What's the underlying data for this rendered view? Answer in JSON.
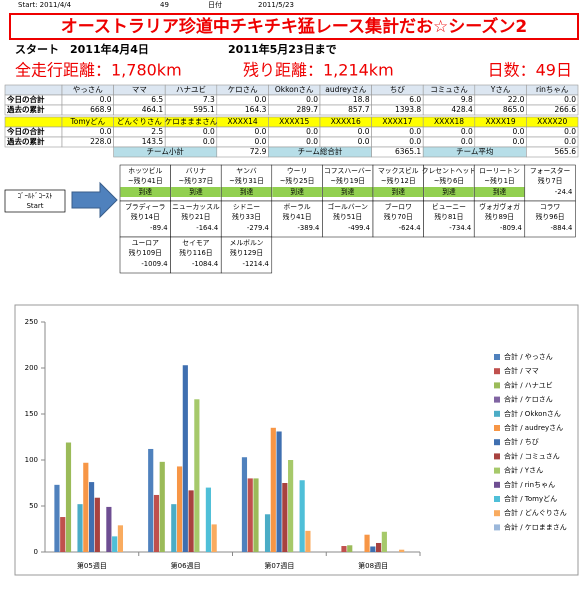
{
  "header": {
    "start_label": "Start: 2011/4/4",
    "days": "49",
    "date_label": "日付",
    "date": "2011/5/23"
  },
  "title": "オーストラリア珍道中チキチキ猛レース集計だお☆シーズン2",
  "summary": {
    "start": "スタート　2011年4月4日",
    "until": "2011年5月23日まで",
    "total": "全走行距離：1,780km",
    "remaining": "残り距離：1,214km",
    "days": "日数：49日"
  },
  "table": {
    "blocks": [
      {
        "header": [
          "やっさん",
          "ママ",
          "ハナユビ",
          "ケロさん",
          "Okkonさん",
          "audreyさん",
          "ちび",
          "コミュさん",
          "Yさん",
          "rinちゃん"
        ],
        "rows": [
          {
            "label": "今日の合計",
            "values": [
              "0.0",
              "6.5",
              "7.3",
              "0.0",
              "0.0",
              "18.8",
              "6.0",
              "9.8",
              "22.0",
              "0.0"
            ]
          },
          {
            "label": "過去の累計",
            "values": [
              "668.9",
              "464.1",
              "595.1",
              "164.3",
              "289.7",
              "857.7",
              "1393.8",
              "428.4",
              "865.0",
              "266.6"
            ]
          }
        ]
      },
      {
        "header": [
          "Tomyどん",
          "どんぐりさん",
          "ケロまままさん",
          "XXXX14",
          "XXXX15",
          "XXXX16",
          "XXXX17",
          "XXXX18",
          "XXXX19",
          "XXXX20"
        ],
        "rows": [
          {
            "label": "今日の合計",
            "values": [
              "0.0",
              "2.5",
              "0.0",
              "0.0",
              "0.0",
              "0.0",
              "0.0",
              "0.0",
              "0.0",
              "0.0"
            ]
          },
          {
            "label": "過去の累計",
            "values": [
              "228.0",
              "143.5",
              "0.0",
              "0.0",
              "0.0",
              "0.0",
              "0.0",
              "0.0",
              "0.0",
              "0.0"
            ]
          }
        ]
      }
    ],
    "totals": [
      {
        "label": "チーム小計",
        "value": "72.9"
      },
      {
        "label": "チーム総合計",
        "value": "6365.1"
      },
      {
        "label": "チーム平均",
        "value": "565.6"
      }
    ]
  },
  "course": {
    "start": [
      "ｺﾞｰﾙﾄﾞｺｰｽﾄ",
      "Start"
    ],
    "rows": [
      [
        {
          "name": "ホッツビル",
          "days": "~残り41日",
          "status": "到達"
        },
        {
          "name": "バリナ",
          "days": "~残り37日",
          "status": "到達"
        },
        {
          "name": "ヤンバ",
          "days": "~残り31日",
          "status": "到達"
        },
        {
          "name": "ウーリ",
          "days": "~残り25日",
          "status": "到達"
        },
        {
          "name": "コフスハーバー",
          "days": "~残り19日",
          "status": "到達"
        },
        {
          "name": "マックスビル",
          "days": "~残り12日",
          "status": "到達"
        },
        {
          "name": "クレセントヘッド",
          "days": "~残り6日",
          "status": "到達"
        },
        {
          "name": "ローリートン",
          "days": "~残り1日",
          "status": "到達"
        },
        {
          "name": "フォースター",
          "days": "残り7日",
          "status": "-24.4"
        }
      ],
      [
        {
          "name": "ブラディーラ",
          "days": "残り14日",
          "status": "-89.4"
        },
        {
          "name": "ニューカッスル",
          "days": "残り21日",
          "status": "-164.4"
        },
        {
          "name": "シドニー",
          "days": "残り33日",
          "status": "-279.4"
        },
        {
          "name": "ボーラル",
          "days": "残り41日",
          "status": "-389.4"
        },
        {
          "name": "ゴールバーン",
          "days": "残り51日",
          "status": "-499.4"
        },
        {
          "name": "ブーロワ",
          "days": "残り70日",
          "status": "-624.4"
        },
        {
          "name": "ビューニー",
          "days": "残り81日",
          "status": "-734.4"
        },
        {
          "name": "ヴォガヴォガ",
          "days": "残り89日",
          "status": "-809.4"
        },
        {
          "name": "コラワ",
          "days": "残り96日",
          "status": "-884.4"
        }
      ],
      [
        {
          "name": "ユーロア",
          "days": "残り109日",
          "status": "-1009.4"
        },
        {
          "name": "セイモア",
          "days": "残り116日",
          "status": "-1084.4"
        },
        {
          "name": "メルボルン",
          "days": "残り129日",
          "status": "-1214.4"
        }
      ]
    ]
  },
  "chart_data": {
    "type": "bar",
    "categories": [
      "第05週目",
      "第06週目",
      "第07週目",
      "第08週目"
    ],
    "ylim": [
      0,
      250
    ],
    "yticks": [
      0,
      50,
      100,
      150,
      200,
      250
    ],
    "grid": false,
    "legend": "right",
    "series": [
      {
        "name": "合計 / やっさん",
        "color": "#4F81BD",
        "values": [
          73,
          112,
          103,
          0
        ]
      },
      {
        "name": "合計 / ママ",
        "color": "#C0504D",
        "values": [
          38,
          62,
          80,
          6.5
        ]
      },
      {
        "name": "合計 / ハナユビ",
        "color": "#9BBB59",
        "values": [
          119,
          98,
          80,
          7.3
        ]
      },
      {
        "name": "合計 / ケロさん",
        "color": "#8064A2",
        "values": [
          0,
          0,
          0,
          0
        ]
      },
      {
        "name": "合計 / Okkonさん",
        "color": "#4BACC6",
        "values": [
          52,
          52,
          41,
          0
        ]
      },
      {
        "name": "合計 / audreyさん",
        "color": "#F79646",
        "values": [
          97,
          93,
          135,
          18.8
        ]
      },
      {
        "name": "合計 / ちび",
        "color": "#3F6FB0",
        "values": [
          76,
          203,
          131,
          6
        ]
      },
      {
        "name": "合計 / コミュさん",
        "color": "#A8423F",
        "values": [
          59,
          67,
          75,
          9.8
        ]
      },
      {
        "name": "合計 / Yさん",
        "color": "#A6C96A",
        "values": [
          0,
          166,
          100,
          22
        ]
      },
      {
        "name": "合計 / rinちゃん",
        "color": "#6E4E92",
        "values": [
          49,
          0,
          0,
          0
        ]
      },
      {
        "name": "合計 / Tomyどん",
        "color": "#4FBFD8",
        "values": [
          17,
          70,
          78,
          0
        ]
      },
      {
        "name": "合計 / どんぐりさん",
        "color": "#F9AB5F",
        "values": [
          29,
          30,
          23,
          2.5
        ]
      },
      {
        "name": "合計 / ケロままさん",
        "color": "#9BB7DA",
        "values": [
          0,
          0,
          0,
          0
        ]
      }
    ]
  }
}
